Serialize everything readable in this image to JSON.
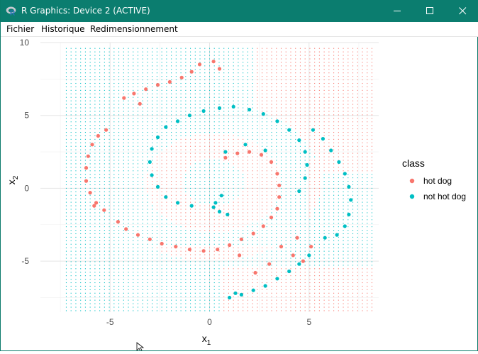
{
  "window": {
    "title": "R Graphics: Device 2 (ACTIVE)",
    "titlebar_color": "#0b7d6f",
    "controls": {
      "minimize": "minimize-icon",
      "maximize": "maximize-icon",
      "close": "close-icon"
    }
  },
  "menu": {
    "items": [
      "Fichier",
      "Historique",
      "Redimensionnement"
    ]
  },
  "chart_data": {
    "type": "scatter",
    "title": "",
    "xlabel": "x",
    "xlabel_subscript": "1",
    "ylabel": "x",
    "ylabel_subscript": "2",
    "xlim": [
      -8.5,
      8.5
    ],
    "ylim": [
      -8.5,
      10
    ],
    "x_ticks": [
      -5,
      0,
      5
    ],
    "x_tick_labels": [
      "-5",
      "0",
      "5"
    ],
    "y_ticks": [
      -5,
      0,
      5,
      10
    ],
    "y_tick_labels": [
      "-5",
      "0",
      "5",
      "10"
    ],
    "grid": true,
    "legend": {
      "title": "class",
      "position": "right",
      "entries": [
        {
          "label": "hot dog",
          "color": "#F8766D"
        },
        {
          "label": "not hot dog",
          "color": "#00BFC4"
        }
      ]
    },
    "colors": {
      "hot dog": "#F8766D",
      "not hot dog": "#00BFC4"
    },
    "background_grid": {
      "x_range": [
        -7.2,
        8.2
      ],
      "y_range": [
        -8.4,
        9.6
      ],
      "step": 0.24,
      "description": "decision-region grid colored by predicted class"
    },
    "series": [
      {
        "name": "not hot dog",
        "points": [
          [
            -2.2,
            4.2
          ],
          [
            -1.6,
            4.6
          ],
          [
            -1.0,
            5.0
          ],
          [
            -0.3,
            5.3
          ],
          [
            0.5,
            5.5
          ],
          [
            1.2,
            5.6
          ],
          [
            2.0,
            5.4
          ],
          [
            2.7,
            5.1
          ],
          [
            3.4,
            4.6
          ],
          [
            4.0,
            4.0
          ],
          [
            4.5,
            3.3
          ],
          [
            4.8,
            2.5
          ],
          [
            4.9,
            1.6
          ],
          [
            4.8,
            0.7
          ],
          [
            4.5,
            -0.2
          ],
          [
            -2.6,
            3.5
          ],
          [
            -2.9,
            2.7
          ],
          [
            -3.0,
            1.8
          ],
          [
            -2.9,
            0.9
          ],
          [
            -2.6,
            0.1
          ],
          [
            -2.2,
            -0.6
          ],
          [
            -1.6,
            -1.0
          ],
          [
            -0.9,
            -1.2
          ],
          [
            0.6,
            -0.5
          ],
          [
            0.3,
            -1.0
          ],
          [
            0.5,
            -1.6
          ],
          [
            0.9,
            -1.8
          ],
          [
            0.2,
            -1.3
          ],
          [
            2.8,
            2.6
          ],
          [
            1.8,
            3.0
          ],
          [
            0.8,
            2.5
          ],
          [
            5.2,
            4.0
          ],
          [
            5.7,
            3.4
          ],
          [
            6.1,
            2.6
          ],
          [
            6.5,
            1.8
          ],
          [
            6.8,
            1.0
          ],
          [
            7.0,
            0.1
          ],
          [
            7.1,
            -0.8
          ],
          [
            7.0,
            -1.8
          ],
          [
            6.8,
            -2.6
          ],
          [
            6.4,
            -3.2
          ],
          [
            5.8,
            -3.4
          ],
          [
            5.0,
            -4.6
          ],
          [
            4.5,
            -5.2
          ],
          [
            4.0,
            -5.7
          ],
          [
            3.4,
            -6.2
          ],
          [
            2.8,
            -6.7
          ],
          [
            2.2,
            -7.0
          ],
          [
            1.6,
            -7.3
          ],
          [
            1.0,
            -7.5
          ],
          [
            1.3,
            -7.2
          ]
        ]
      },
      {
        "name": "hot dog",
        "points": [
          [
            -5.2,
            4.0
          ],
          [
            -5.6,
            3.6
          ],
          [
            -5.9,
            3.0
          ],
          [
            -6.1,
            2.2
          ],
          [
            -6.2,
            1.4
          ],
          [
            -6.2,
            0.5
          ],
          [
            -6.0,
            -0.3
          ],
          [
            -5.7,
            -1.0
          ],
          [
            -5.3,
            -1.5
          ],
          [
            -4.6,
            -2.3
          ],
          [
            -4.2,
            -2.8
          ],
          [
            -3.6,
            -3.2
          ],
          [
            -3.0,
            -3.5
          ],
          [
            -2.4,
            -3.8
          ],
          [
            -1.7,
            -4.0
          ],
          [
            -1.0,
            -4.2
          ],
          [
            -0.3,
            -4.3
          ],
          [
            0.4,
            -4.2
          ],
          [
            1.0,
            -3.9
          ],
          [
            1.6,
            -3.5
          ],
          [
            2.2,
            -3.1
          ],
          [
            2.7,
            -2.6
          ],
          [
            3.1,
            -2.0
          ],
          [
            3.4,
            -1.4
          ],
          [
            3.5,
            -0.6
          ],
          [
            3.5,
            0.2
          ],
          [
            3.4,
            1.0
          ],
          [
            3.1,
            1.8
          ],
          [
            2.6,
            2.3
          ],
          [
            2.0,
            2.5
          ],
          [
            1.4,
            2.4
          ],
          [
            0.8,
            2.1
          ],
          [
            -4.3,
            6.2
          ],
          [
            -3.8,
            6.5
          ],
          [
            -3.2,
            6.8
          ],
          [
            -2.6,
            7.1
          ],
          [
            -2.0,
            7.3
          ],
          [
            -1.4,
            7.6
          ],
          [
            -0.9,
            8.0
          ],
          [
            -0.5,
            8.5
          ],
          [
            0.2,
            8.7
          ],
          [
            0.5,
            8.2
          ],
          [
            -3.5,
            5.8
          ],
          [
            -5.8,
            -1.2
          ],
          [
            3.6,
            -4.0
          ],
          [
            4.2,
            -4.6
          ],
          [
            4.7,
            -5.0
          ],
          [
            5.1,
            -4.0
          ],
          [
            3.0,
            -5.2
          ],
          [
            2.3,
            -5.8
          ],
          [
            4.4,
            -3.4
          ],
          [
            1.5,
            -4.6
          ]
        ]
      }
    ]
  }
}
